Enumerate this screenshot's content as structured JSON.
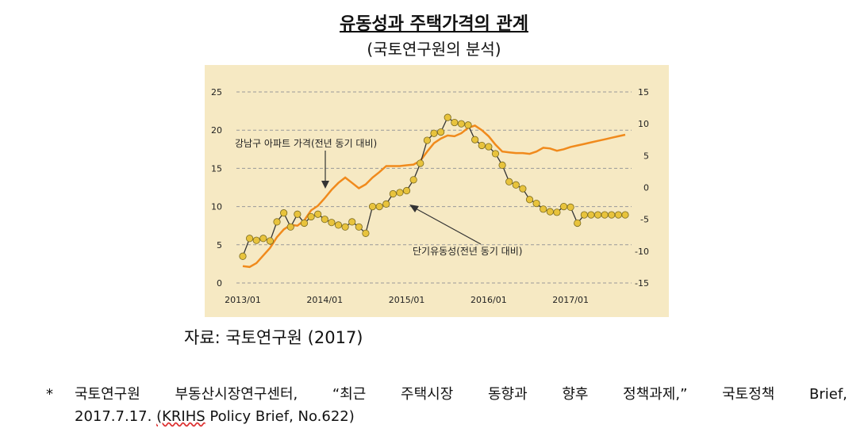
{
  "title": "유동성과 주택가격의 관계",
  "subtitle": "(국토연구원의 분석)",
  "source": "자료: 국토연구원 (2017)",
  "footnote": {
    "marker": "*",
    "line1_words": [
      "국토연구원",
      "부동산시장연구센터,",
      "“최근",
      "주택시장",
      "동향과",
      "향후",
      "정책과제,”",
      "국토정책",
      "Brief,"
    ],
    "line2_prefix": "2017.7.17.",
    "line2_wavy": "(KRIHS",
    "line2_rest": "Policy Brief, No.622)"
  },
  "chart_data": {
    "type": "line",
    "colors": {
      "background": "#f6e9c3",
      "price": "#f08a1c",
      "liquidity_line": "#333333",
      "liquidity_marker": "#e8c33c",
      "grid": "#999999",
      "text": "#222222"
    },
    "x_range": [
      0,
      56
    ],
    "x_ticks": [
      {
        "x": 0,
        "label": "2013/01"
      },
      {
        "x": 12,
        "label": "2014/01"
      },
      {
        "x": 24,
        "label": "2015/01"
      },
      {
        "x": 36,
        "label": "2016/01"
      },
      {
        "x": 48,
        "label": "2017/01"
      }
    ],
    "y_left": {
      "range": [
        0,
        25
      ],
      "ticks": [
        0,
        5,
        10,
        15,
        20,
        25
      ]
    },
    "y_right": {
      "range": [
        -15,
        15
      ],
      "ticks": [
        -15,
        -10,
        -5,
        0,
        5,
        10,
        15
      ]
    },
    "grid": "horizontal dashed",
    "series": [
      {
        "name": "강남구 아파트 가격(전년 동기 대비)",
        "axis": "left",
        "style": "line",
        "x": [
          0,
          1,
          2,
          3,
          4,
          5,
          6,
          7,
          8,
          9,
          10,
          11,
          12,
          13,
          14,
          15,
          16,
          17,
          18,
          19,
          20,
          21,
          22,
          23,
          24,
          25,
          26,
          27,
          28,
          29,
          30,
          31,
          32,
          33,
          34,
          35,
          36,
          37,
          38,
          39,
          40,
          41,
          42,
          43,
          44,
          45,
          46,
          47,
          48,
          49,
          50,
          51,
          52,
          53,
          54,
          55,
          56
        ],
        "values": [
          2.2,
          2.1,
          2.6,
          3.6,
          4.6,
          6.0,
          7.0,
          7.6,
          7.5,
          8.2,
          9.5,
          10.1,
          11.1,
          12.2,
          13.1,
          13.8,
          13.1,
          12.4,
          12.9,
          13.8,
          14.5,
          15.3,
          15.3,
          15.3,
          15.4,
          15.5,
          16.0,
          17.2,
          18.3,
          18.9,
          19.3,
          19.2,
          19.6,
          20.3,
          20.6,
          20.0,
          19.2,
          18.1,
          17.2,
          17.1,
          17.0,
          17.0,
          16.9,
          17.2,
          17.7,
          17.6,
          17.3,
          17.5,
          17.8,
          18.0,
          18.2,
          18.4,
          18.6,
          18.8,
          19.0,
          19.2,
          19.4
        ]
      },
      {
        "name": "단기유동성(전년 동기 대비)",
        "axis": "right",
        "style": "line+markers",
        "x": [
          0,
          1,
          2,
          3,
          4,
          5,
          6,
          7,
          8,
          9,
          10,
          11,
          12,
          13,
          14,
          15,
          16,
          17,
          18,
          19,
          20,
          21,
          22,
          23,
          24,
          25,
          26,
          27,
          28,
          29,
          30,
          31,
          32,
          33,
          34,
          35,
          36,
          37,
          38,
          39,
          40,
          41,
          42,
          43,
          44,
          45,
          46,
          47,
          48,
          49,
          50,
          51,
          52,
          53,
          54,
          55,
          56
        ],
        "values": [
          -10.8,
          -8.0,
          -8.3,
          -8.0,
          -8.4,
          -5.4,
          -4.0,
          -6.2,
          -4.2,
          -5.6,
          -4.6,
          -4.2,
          -5.0,
          -5.5,
          -5.9,
          -6.2,
          -5.4,
          -6.2,
          -7.2,
          -3.0,
          -3.0,
          -2.6,
          -1.0,
          -0.8,
          -0.5,
          1.2,
          3.8,
          7.4,
          8.5,
          8.7,
          11.0,
          10.2,
          10.0,
          9.8,
          7.5,
          6.6,
          6.4,
          5.3,
          3.5,
          0.9,
          0.4,
          -0.2,
          -1.9,
          -2.5,
          -3.4,
          -3.8,
          -3.9,
          -3.0,
          -3.1,
          -5.6,
          -4.3,
          -4.3,
          -4.3,
          -4.3,
          -4.3,
          -4.3,
          -4.3
        ]
      }
    ],
    "annotations": [
      {
        "text": "강남구 아파트 가격(전년 동기 대비)"
      },
      {
        "text": "단기유동성(전년 동기 대비)"
      }
    ]
  }
}
